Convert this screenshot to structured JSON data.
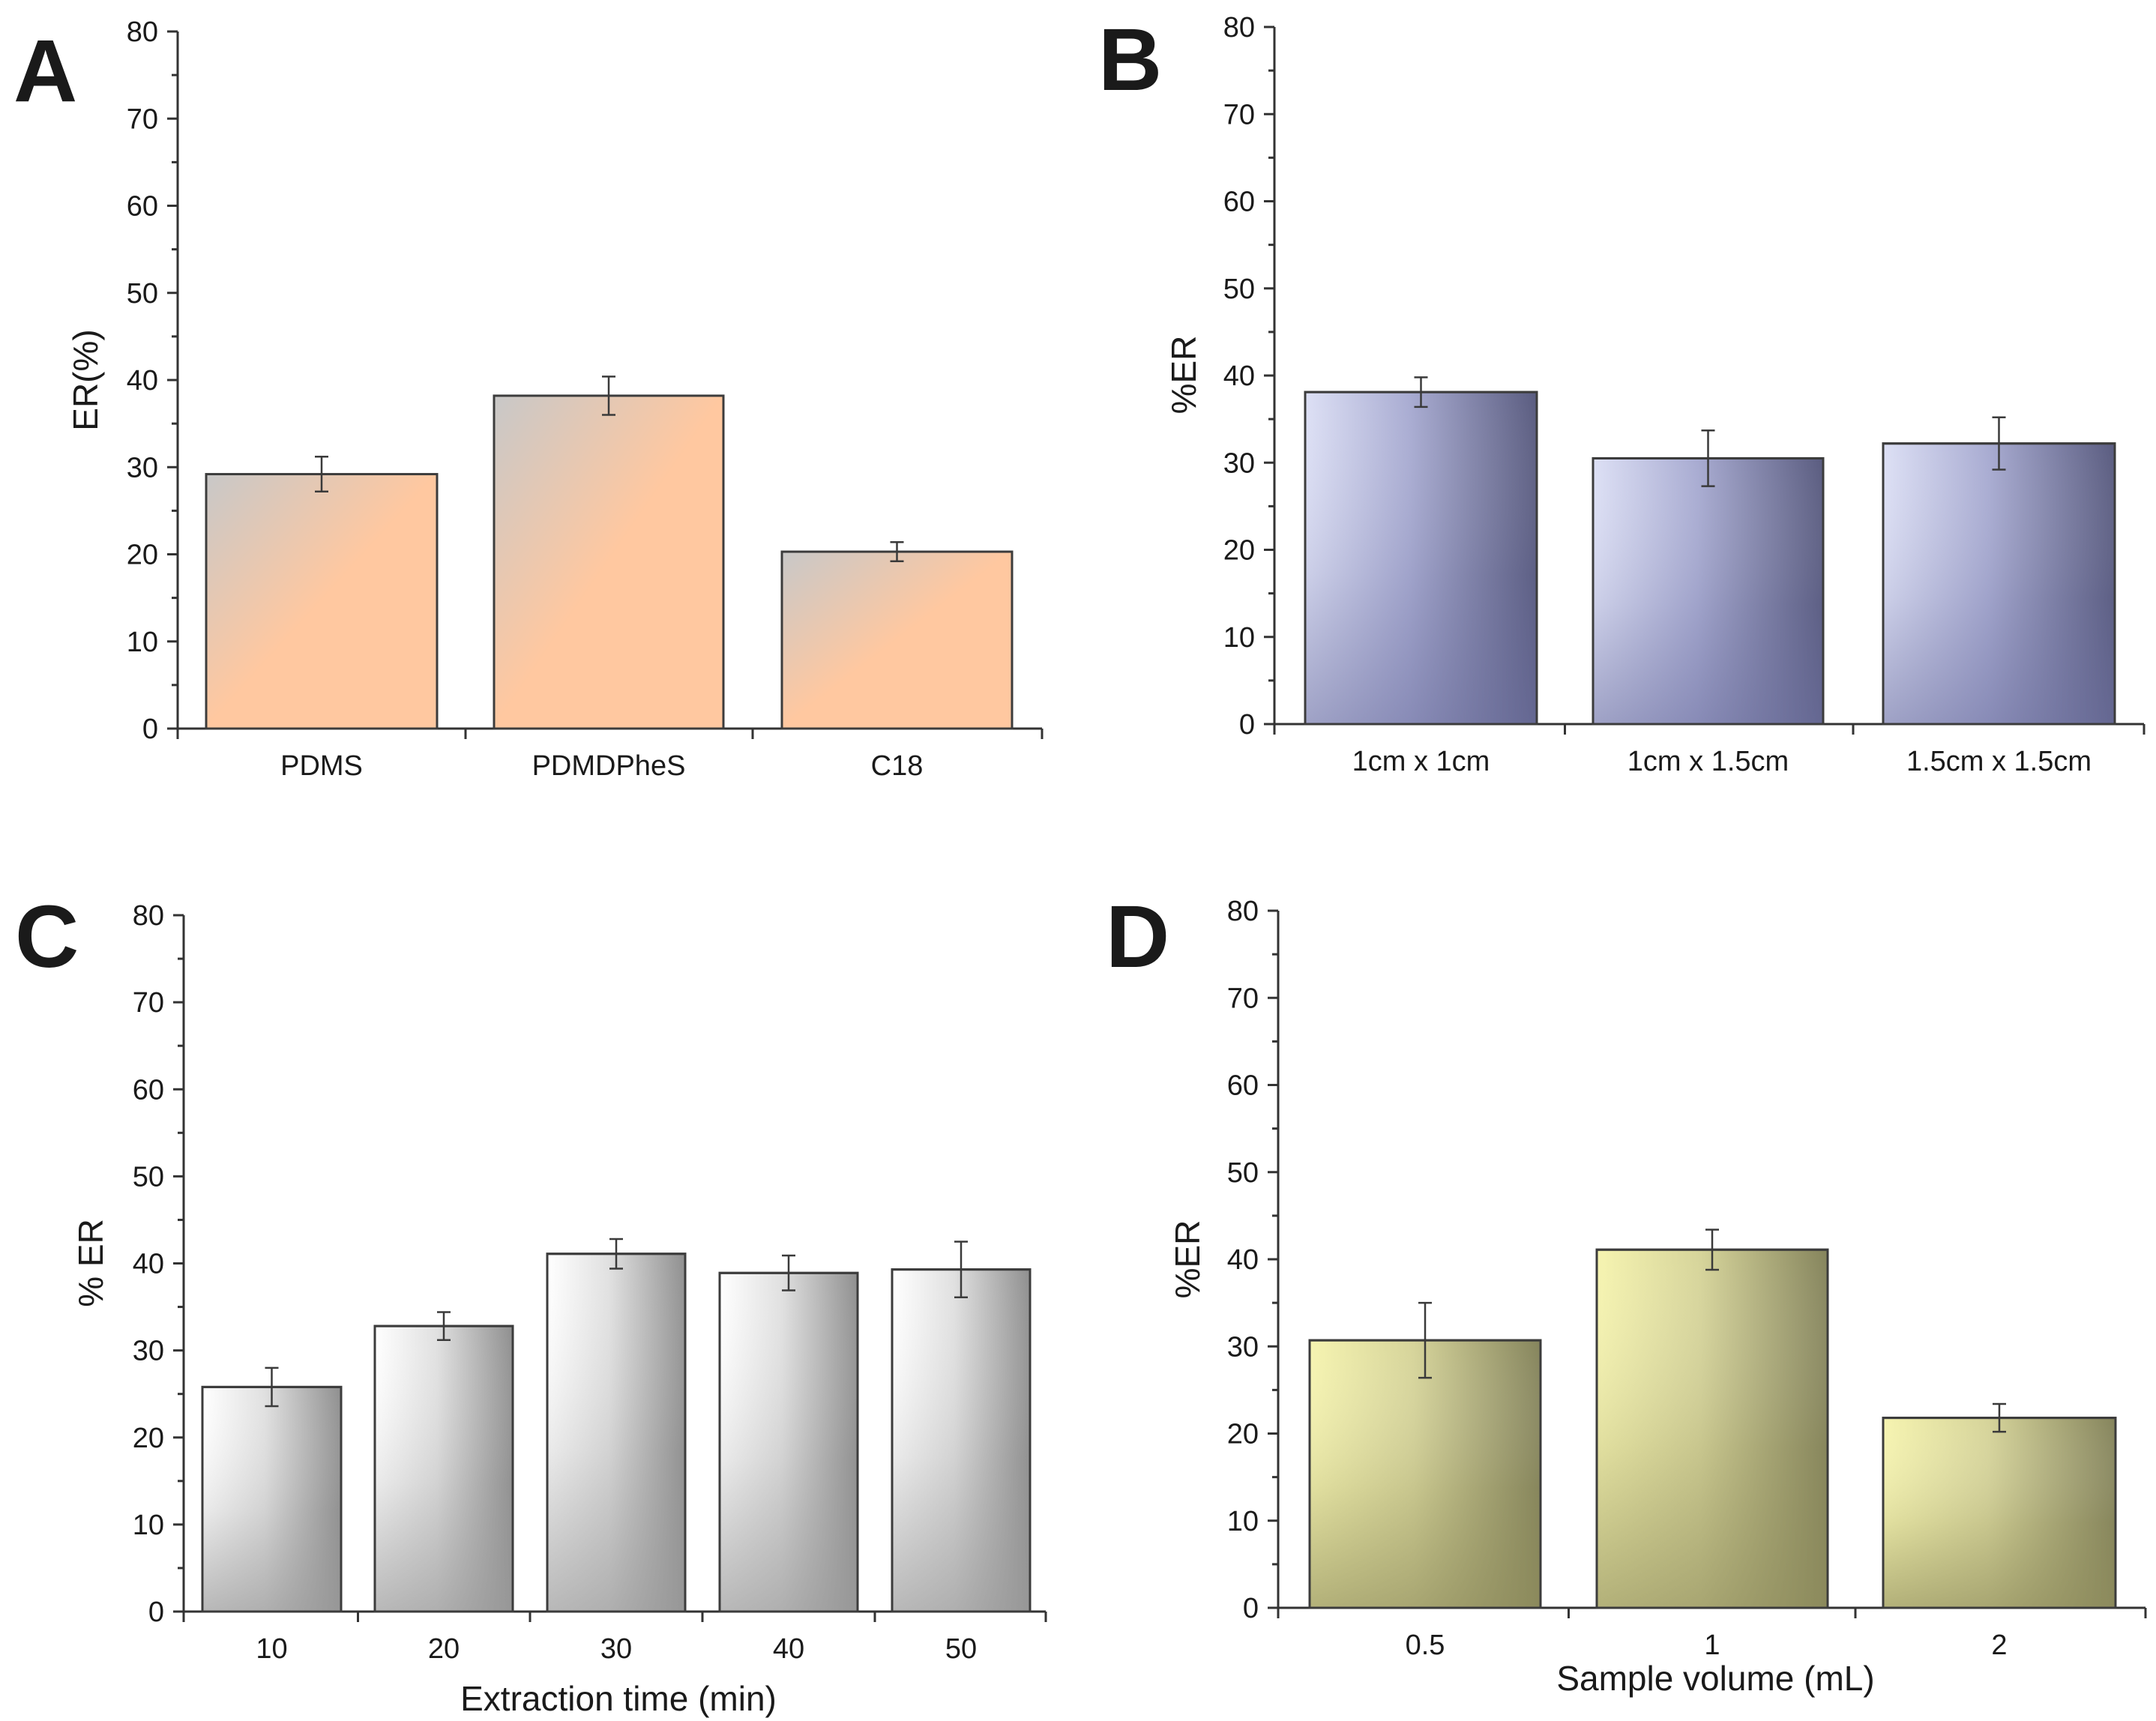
{
  "colors": {
    "A_start": "#c8c8c8",
    "A_end": "#ffc8a0",
    "B_light": "#dde0f5",
    "B_dark": "#5a5c80",
    "C_light": "#ffffff",
    "C_dark": "#8f8f8f",
    "D_light": "#f6f4b0",
    "D_dark": "#85845c"
  },
  "chart_data": [
    {
      "panel": "A",
      "type": "bar",
      "title": "",
      "xlabel": "",
      "ylabel": "ER(%)",
      "ylim": [
        0,
        80
      ],
      "yticks": [
        "0",
        "10",
        "20",
        "30",
        "40",
        "50",
        "60",
        "70",
        "80"
      ],
      "categories": [
        "PDMS",
        "PDMDPheS",
        "C18"
      ],
      "values": [
        29.2,
        38.2,
        20.3
      ],
      "errors": [
        2.0,
        2.2,
        1.1
      ],
      "style": "A"
    },
    {
      "panel": "B",
      "type": "bar",
      "title": "",
      "xlabel": "",
      "ylabel": "%ER",
      "ylim": [
        0,
        80
      ],
      "yticks": [
        "0",
        "10",
        "20",
        "30",
        "40",
        "50",
        "60",
        "70",
        "80"
      ],
      "categories": [
        "1cm x 1cm",
        "1cm x 1.5cm",
        "1.5cm x 1.5cm"
      ],
      "values": [
        38.1,
        30.5,
        32.2
      ],
      "errors": [
        1.7,
        3.2,
        3.0
      ],
      "style": "B"
    },
    {
      "panel": "C",
      "type": "bar",
      "title": "",
      "xlabel": "Extraction time (min)",
      "ylabel": "% ER",
      "ylim": [
        0,
        80
      ],
      "yticks": [
        "0",
        "10",
        "20",
        "30",
        "40",
        "50",
        "60",
        "70",
        "80"
      ],
      "categories": [
        "10",
        "20",
        "30",
        "40",
        "50"
      ],
      "values": [
        25.8,
        32.8,
        41.1,
        38.9,
        39.3
      ],
      "errors": [
        2.2,
        1.6,
        1.7,
        2.0,
        3.2
      ],
      "style": "C"
    },
    {
      "panel": "D",
      "type": "bar",
      "title": "",
      "xlabel": "Sample volume (mL)",
      "ylabel": "%ER",
      "ylim": [
        0,
        80
      ],
      "yticks": [
        "0",
        "10",
        "20",
        "30",
        "40",
        "50",
        "60",
        "70",
        "80"
      ],
      "categories": [
        "0.5",
        "1",
        "2"
      ],
      "values": [
        30.7,
        41.1,
        21.8
      ],
      "errors": [
        4.3,
        2.3,
        1.6
      ],
      "style": "D"
    }
  ]
}
